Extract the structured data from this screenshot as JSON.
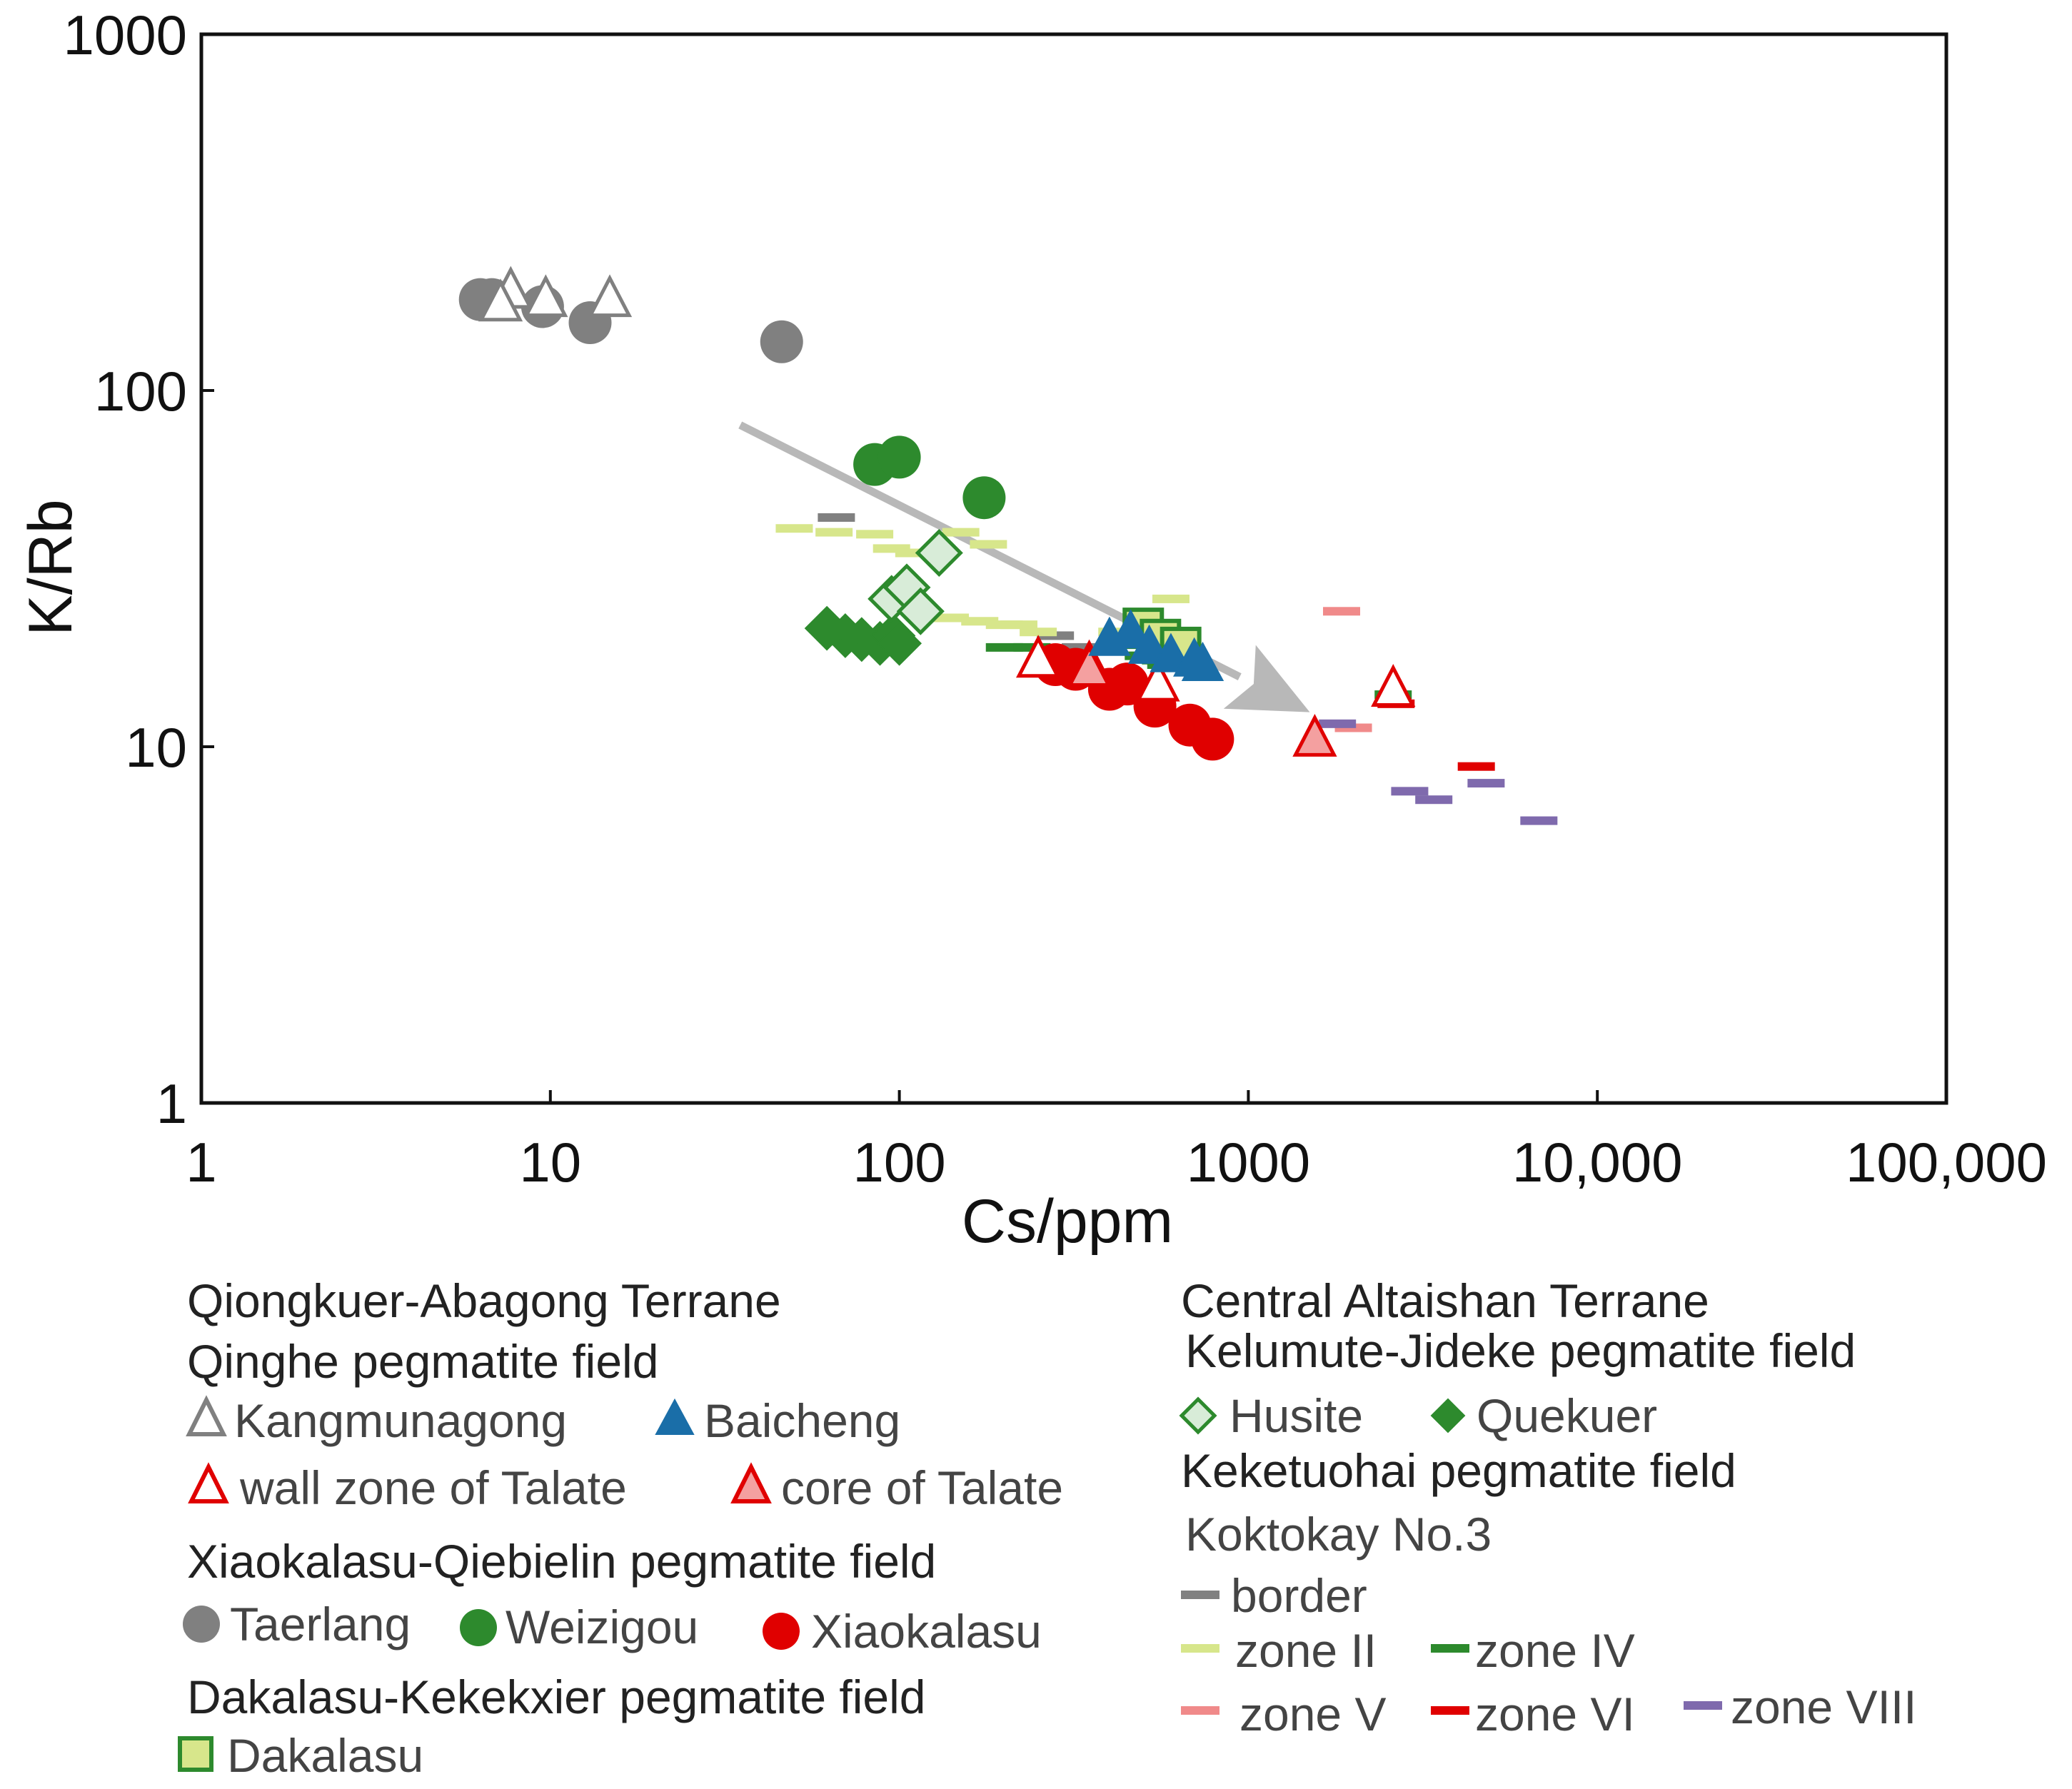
{
  "chart_data": {
    "type": "scatter",
    "title": "",
    "xlabel": "Cs/ppm",
    "ylabel": "K/Rb",
    "xscale": "log",
    "yscale": "log",
    "xlim": [
      1,
      100000
    ],
    "ylim": [
      1,
      1000
    ],
    "x_ticks": [
      1,
      10,
      100,
      1000,
      10000,
      100000
    ],
    "x_tick_labels": [
      "1",
      "10",
      "100",
      "1000",
      "10,000",
      "100,000"
    ],
    "y_ticks": [
      1,
      10,
      100,
      1000
    ],
    "y_tick_labels": [
      "1",
      "10",
      "100",
      "1000"
    ],
    "trend_arrow": {
      "from": [
        35,
        80
      ],
      "to": [
        1500,
        12.5
      ]
    },
    "series": [
      {
        "name": "Kangmunagong",
        "marker": "triangle-open",
        "color": "#808080",
        "points": [
          [
            7.7,
            190
          ],
          [
            9.7,
            180
          ],
          [
            14.8,
            180
          ],
          [
            7.2,
            175
          ]
        ]
      },
      {
        "name": "Baicheng",
        "marker": "triangle-filled",
        "color": "#1a6ea8",
        "points": [
          [
            400,
            20
          ],
          [
            460,
            21
          ],
          [
            520,
            19
          ],
          [
            600,
            18
          ],
          [
            700,
            17.5
          ],
          [
            740,
            17
          ]
        ]
      },
      {
        "name": "wall zone of Talate",
        "marker": "triangle-open",
        "color": "#e00000",
        "points": [
          [
            250,
            17.5
          ],
          [
            350,
            17
          ],
          [
            550,
            15
          ],
          [
            2600,
            14.5
          ]
        ]
      },
      {
        "name": "core of Talate",
        "marker": "triangle-pink",
        "color": "#e00000",
        "points": [
          [
            1550,
            10.5
          ],
          [
            350,
            16.5
          ]
        ]
      },
      {
        "name": "Taerlang",
        "marker": "circle",
        "color": "#808080",
        "points": [
          [
            6.3,
            180
          ],
          [
            6.8,
            180
          ],
          [
            9.5,
            172
          ],
          [
            13,
            155
          ],
          [
            46,
            137
          ]
        ]
      },
      {
        "name": "Weizigou",
        "marker": "circle",
        "color": "#2d8a2d",
        "points": [
          [
            85,
            62
          ],
          [
            100,
            65
          ],
          [
            175,
            50
          ]
        ]
      },
      {
        "name": "Xiaokalasu",
        "marker": "circle",
        "color": "#e00000",
        "points": [
          [
            280,
            17
          ],
          [
            320,
            16.5
          ],
          [
            400,
            14.5
          ],
          [
            450,
            15
          ],
          [
            540,
            13
          ],
          [
            680,
            11.5
          ],
          [
            790,
            10.5
          ]
        ]
      },
      {
        "name": "Dakalasu",
        "marker": "square",
        "color": "#2d8a2d",
        "points": [
          [
            500,
            21.5
          ],
          [
            560,
            20
          ],
          [
            640,
            19
          ]
        ]
      },
      {
        "name": "Husite",
        "marker": "diamond-open",
        "color": "#2d8a2d",
        "points": [
          [
            95,
            26
          ],
          [
            105,
            28
          ],
          [
            115,
            24
          ],
          [
            130,
            35
          ]
        ]
      },
      {
        "name": "Quekuer",
        "marker": "diamond-filled",
        "color": "#2d8a2d",
        "points": [
          [
            62,
            21.5
          ],
          [
            70,
            20.5
          ],
          [
            78,
            20
          ],
          [
            88,
            19.5
          ],
          [
            96,
            20.5
          ],
          [
            100,
            19.5
          ]
        ]
      },
      {
        "name": "border",
        "marker": "dash",
        "color": "#808080",
        "points": [
          [
            66,
            44
          ],
          [
            280,
            20.5
          ],
          [
            300,
            18
          ],
          [
            330,
            19
          ]
        ]
      },
      {
        "name": "zone II",
        "marker": "dash",
        "color": "#d7e68b",
        "points": [
          [
            50,
            41
          ],
          [
            65,
            40
          ],
          [
            85,
            39.5
          ],
          [
            95,
            36
          ],
          [
            110,
            35
          ],
          [
            150,
            40
          ],
          [
            180,
            37
          ],
          [
            140,
            23
          ],
          [
            170,
            22.5
          ],
          [
            200,
            22
          ],
          [
            220,
            22
          ],
          [
            250,
            21
          ],
          [
            600,
            26
          ],
          [
            420,
            21
          ]
        ]
      },
      {
        "name": "zone IV",
        "marker": "dash",
        "color": "#2d8a2d",
        "points": [
          [
            200,
            19
          ],
          [
            240,
            19
          ],
          [
            500,
            18
          ],
          [
            560,
            17.5
          ],
          [
            580,
            17
          ],
          [
            2600,
            14
          ]
        ]
      },
      {
        "name": "zone V",
        "marker": "dash",
        "color": "#f08a8a",
        "points": [
          [
            1850,
            24
          ],
          [
            2000,
            11.3
          ]
        ]
      },
      {
        "name": "zone VI",
        "marker": "dash",
        "color": "#e00000",
        "points": [
          [
            2650,
            13.2
          ],
          [
            4500,
            8.8
          ]
        ]
      },
      {
        "name": "zone VIII",
        "marker": "dash",
        "color": "#7f6aad",
        "points": [
          [
            1800,
            11.6
          ],
          [
            2900,
            7.5
          ],
          [
            3400,
            7.1
          ],
          [
            4800,
            7.9
          ],
          [
            6800,
            6.2
          ]
        ]
      }
    ]
  },
  "legend": {
    "left": {
      "terrane": "Qiongkuer-Abagong Terrane",
      "field1": "Qinghe pegmatite field",
      "field1_row1": [
        "Kangmunagong",
        "Baicheng"
      ],
      "field1_row2": [
        "wall zone of Talate",
        "core of Talate"
      ],
      "field2": "Xiaokalasu-Qiebielin pegmatite field",
      "field2_row": [
        "Taerlang",
        "Weizigou",
        "Xiaokalasu"
      ],
      "field3": "Dakalasu-Kekekxier pegmatite field",
      "field3_row": [
        "Dakalasu"
      ]
    },
    "right": {
      "terrane": "Central Altaishan Terrane",
      "field1": "Kelumute-Jideke pegmatite field",
      "field1_row": [
        "Husite",
        "Quekuer"
      ],
      "field2": "Keketuohai pegmatite field",
      "sub": "Koktokay No.3",
      "row1": [
        "border"
      ],
      "row2": [
        "zone II",
        "zone IV"
      ],
      "row3": [
        "zone V",
        "zone VI",
        "zone VIII"
      ]
    }
  }
}
